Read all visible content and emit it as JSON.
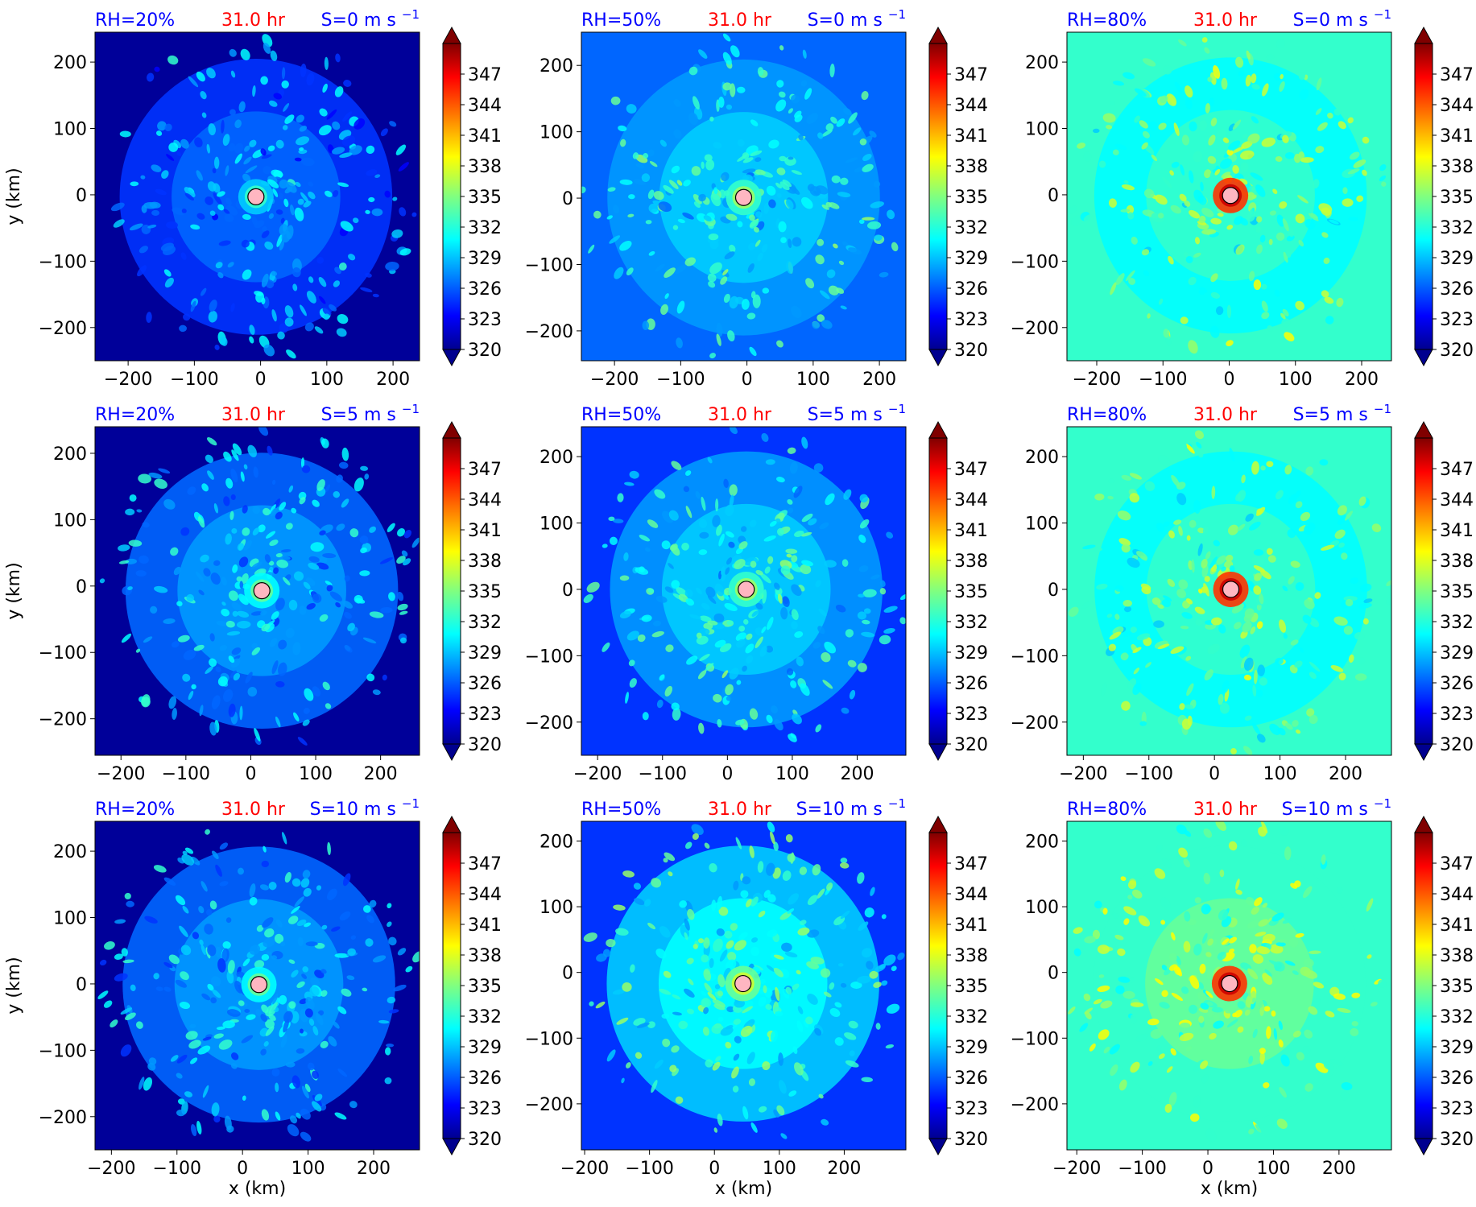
{
  "figure": {
    "rows": 3,
    "cols": 3,
    "xlabel": "x (km)",
    "ylabel": "y (km)",
    "time_label": "31.0 hr",
    "colors": {
      "header_blue": "#0000ff",
      "header_red": "#ff0000"
    }
  },
  "colorbar": {
    "ticks": [
      "347",
      "344",
      "341",
      "338",
      "335",
      "332",
      "329",
      "326",
      "323",
      "320"
    ],
    "vmin": 320,
    "vmax": 350,
    "extend": "both",
    "colormap": "jet"
  },
  "chart_data": [
    {
      "type": "heatmap",
      "rh": "RH=20%",
      "shear": "S=0 m s",
      "time": "31.0 hr",
      "xlim": [
        -250,
        240
      ],
      "ylim": [
        -250,
        245
      ],
      "xticks": [
        "−200",
        "−100",
        "0",
        "100",
        "200"
      ],
      "xtick_values": [
        -200,
        -100,
        0,
        100,
        200
      ],
      "yticks": [
        "200",
        "100",
        "0",
        "−100",
        "−200"
      ],
      "ytick_values": [
        200,
        100,
        0,
        -100,
        -200
      ],
      "center": [
        -7,
        -3
      ],
      "background_theta_e": 321,
      "field_mean_theta_e": 327
    },
    {
      "type": "heatmap",
      "rh": "RH=50%",
      "shear": "S=0 m s",
      "time": "31.0 hr",
      "xlim": [
        -250,
        240
      ],
      "ylim": [
        -245,
        250
      ],
      "xticks": [
        "−200",
        "−100",
        "0",
        "100",
        "200"
      ],
      "xtick_values": [
        -200,
        -100,
        0,
        100,
        200
      ],
      "yticks": [
        "200",
        "100",
        "0",
        "−100",
        "−200"
      ],
      "ytick_values": [
        200,
        100,
        0,
        -100,
        -200
      ],
      "center": [
        -5,
        1
      ],
      "background_theta_e": 327,
      "field_mean_theta_e": 330
    },
    {
      "type": "heatmap",
      "rh": "RH=80%",
      "shear": "S=0 m s",
      "time": "31.0 hr",
      "xlim": [
        -245,
        245
      ],
      "ylim": [
        -250,
        245
      ],
      "xticks": [
        "−200",
        "−100",
        "0",
        "100",
        "200"
      ],
      "xtick_values": [
        -200,
        -100,
        0,
        100,
        200
      ],
      "yticks": [
        "200",
        "100",
        "0",
        "−100",
        "−200"
      ],
      "ytick_values": [
        200,
        100,
        0,
        -100,
        -200
      ],
      "center": [
        2,
        -1
      ],
      "background_theta_e": 333,
      "field_mean_theta_e": 333
    },
    {
      "type": "heatmap",
      "rh": "RH=20%",
      "shear": "S=5 m s",
      "time": "31.0 hr",
      "xlim": [
        -240,
        260
      ],
      "ylim": [
        -255,
        240
      ],
      "xticks": [
        "−200",
        "−100",
        "0",
        "100",
        "200"
      ],
      "xtick_values": [
        -200,
        -100,
        0,
        100,
        200
      ],
      "yticks": [
        "200",
        "100",
        "0",
        "−100",
        "−200"
      ],
      "ytick_values": [
        200,
        100,
        0,
        -100,
        -200
      ],
      "center": [
        17,
        -7
      ],
      "background_theta_e": 321,
      "field_mean_theta_e": 328
    },
    {
      "type": "heatmap",
      "rh": "RH=50%",
      "shear": "S=5 m s",
      "time": "31.0 hr",
      "xlim": [
        -225,
        275
      ],
      "ylim": [
        -250,
        245
      ],
      "xticks": [
        "−200",
        "−100",
        "0",
        "100",
        "200"
      ],
      "xtick_values": [
        -200,
        -100,
        0,
        100,
        200
      ],
      "yticks": [
        "200",
        "100",
        "0",
        "−100",
        "−200"
      ],
      "ytick_values": [
        200,
        100,
        0,
        -100,
        -200
      ],
      "center": [
        29,
        0
      ],
      "background_theta_e": 325,
      "field_mean_theta_e": 330
    },
    {
      "type": "heatmap",
      "rh": "RH=80%",
      "shear": "S=5 m s",
      "time": "31.0 hr",
      "xlim": [
        -225,
        270
      ],
      "ylim": [
        -250,
        245
      ],
      "xticks": [
        "−200",
        "−100",
        "0",
        "100",
        "200"
      ],
      "xtick_values": [
        -200,
        -100,
        0,
        100,
        200
      ],
      "yticks": [
        "200",
        "100",
        "0",
        "−100",
        "−200"
      ],
      "ytick_values": [
        200,
        100,
        0,
        -100,
        -200
      ],
      "center": [
        25,
        0
      ],
      "background_theta_e": 333,
      "field_mean_theta_e": 333
    },
    {
      "type": "heatmap",
      "rh": "RH=20%",
      "shear": "S=10 m s",
      "time": "31.0 hr",
      "xlim": [
        -225,
        270
      ],
      "ylim": [
        -250,
        245
      ],
      "xticks": [
        "−200",
        "−100",
        "0",
        "100",
        "200"
      ],
      "xtick_values": [
        -200,
        -100,
        0,
        100,
        200
      ],
      "yticks": [
        "200",
        "100",
        "0",
        "−100",
        "−200"
      ],
      "ytick_values": [
        200,
        100,
        0,
        -100,
        -200
      ],
      "center": [
        25,
        -1
      ],
      "background_theta_e": 321,
      "field_mean_theta_e": 328
    },
    {
      "type": "heatmap",
      "rh": "RH=50%",
      "shear": "S=10 m s",
      "time": "31.0 hr",
      "xlim": [
        -205,
        295
      ],
      "ylim": [
        -270,
        230
      ],
      "xticks": [
        "−200",
        "−100",
        "0",
        "100",
        "200"
      ],
      "xtick_values": [
        -200,
        -100,
        0,
        100,
        200
      ],
      "yticks": [
        "200",
        "100",
        "0",
        "−100",
        "−200"
      ],
      "ytick_values": [
        200,
        100,
        0,
        -100,
        -200
      ],
      "center": [
        44,
        -17
      ],
      "background_theta_e": 325,
      "field_mean_theta_e": 331
    },
    {
      "type": "heatmap",
      "rh": "RH=80%",
      "shear": "S=10 m s",
      "time": "31.0 hr",
      "xlim": [
        -215,
        280
      ],
      "ylim": [
        -270,
        230
      ],
      "xticks": [
        "−200",
        "−100",
        "0",
        "100",
        "200"
      ],
      "xtick_values": [
        -200,
        -100,
        0,
        100,
        200
      ],
      "yticks": [
        "200",
        "100",
        "0",
        "−100",
        "−200"
      ],
      "ytick_values": [
        200,
        100,
        0,
        -100,
        -200
      ],
      "center": [
        33,
        -17
      ],
      "background_theta_e": 333,
      "field_mean_theta_e": 334
    }
  ]
}
